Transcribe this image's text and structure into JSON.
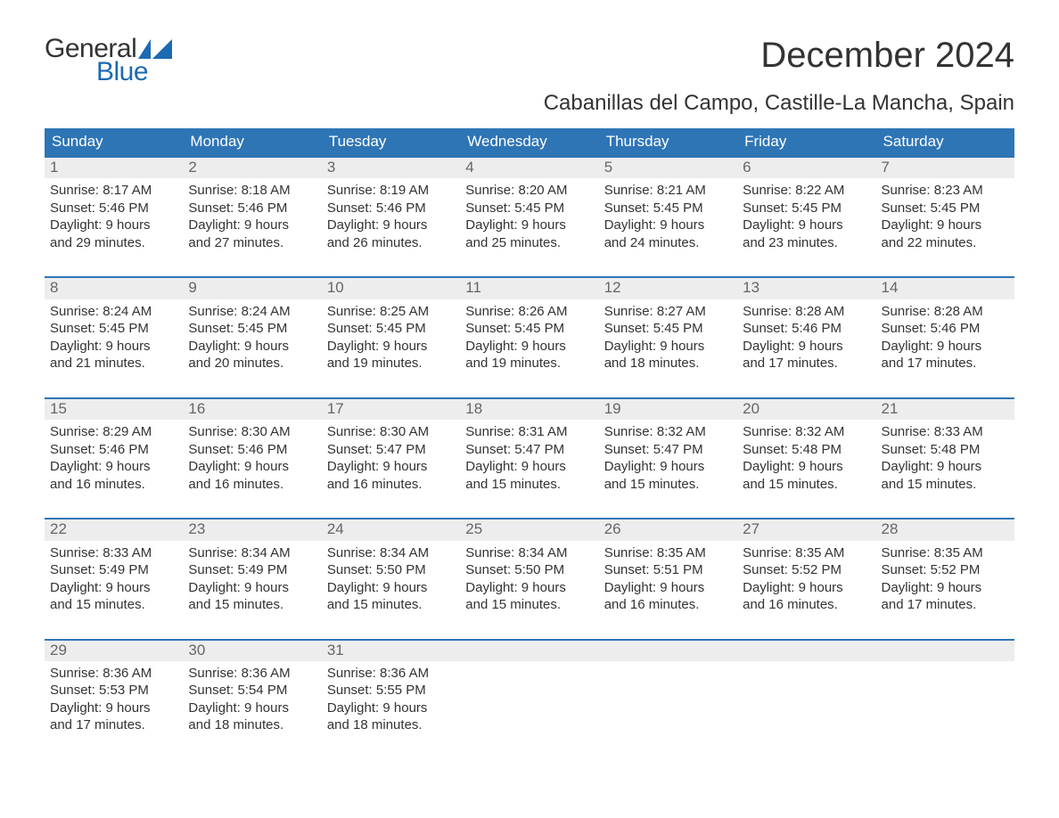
{
  "brand": {
    "line1": "General",
    "line2": "Blue"
  },
  "title": "December 2024",
  "subtitle": "Cabanillas del Campo, Castille-La Mancha, Spain",
  "colors": {
    "header_bg": "#2e75b6",
    "header_text": "#ffffff",
    "week_border": "#2e75b6",
    "daynum_bg": "#ededed",
    "daynum_text": "#666666",
    "body_text": "#333333",
    "brand_blue": "#1b6ab2",
    "page_bg": "#ffffff"
  },
  "typography": {
    "title_fontsize": 40,
    "subtitle_fontsize": 24,
    "dow_fontsize": 17,
    "daynum_fontsize": 17,
    "body_fontsize": 15,
    "logo_fontsize": 30
  },
  "days_of_week": [
    "Sunday",
    "Monday",
    "Tuesday",
    "Wednesday",
    "Thursday",
    "Friday",
    "Saturday"
  ],
  "weeks": [
    [
      {
        "d": "1",
        "sr": "Sunrise: 8:17 AM",
        "ss": "Sunset: 5:46 PM",
        "dl1": "Daylight: 9 hours",
        "dl2": "and 29 minutes."
      },
      {
        "d": "2",
        "sr": "Sunrise: 8:18 AM",
        "ss": "Sunset: 5:46 PM",
        "dl1": "Daylight: 9 hours",
        "dl2": "and 27 minutes."
      },
      {
        "d": "3",
        "sr": "Sunrise: 8:19 AM",
        "ss": "Sunset: 5:46 PM",
        "dl1": "Daylight: 9 hours",
        "dl2": "and 26 minutes."
      },
      {
        "d": "4",
        "sr": "Sunrise: 8:20 AM",
        "ss": "Sunset: 5:45 PM",
        "dl1": "Daylight: 9 hours",
        "dl2": "and 25 minutes."
      },
      {
        "d": "5",
        "sr": "Sunrise: 8:21 AM",
        "ss": "Sunset: 5:45 PM",
        "dl1": "Daylight: 9 hours",
        "dl2": "and 24 minutes."
      },
      {
        "d": "6",
        "sr": "Sunrise: 8:22 AM",
        "ss": "Sunset: 5:45 PM",
        "dl1": "Daylight: 9 hours",
        "dl2": "and 23 minutes."
      },
      {
        "d": "7",
        "sr": "Sunrise: 8:23 AM",
        "ss": "Sunset: 5:45 PM",
        "dl1": "Daylight: 9 hours",
        "dl2": "and 22 minutes."
      }
    ],
    [
      {
        "d": "8",
        "sr": "Sunrise: 8:24 AM",
        "ss": "Sunset: 5:45 PM",
        "dl1": "Daylight: 9 hours",
        "dl2": "and 21 minutes."
      },
      {
        "d": "9",
        "sr": "Sunrise: 8:24 AM",
        "ss": "Sunset: 5:45 PM",
        "dl1": "Daylight: 9 hours",
        "dl2": "and 20 minutes."
      },
      {
        "d": "10",
        "sr": "Sunrise: 8:25 AM",
        "ss": "Sunset: 5:45 PM",
        "dl1": "Daylight: 9 hours",
        "dl2": "and 19 minutes."
      },
      {
        "d": "11",
        "sr": "Sunrise: 8:26 AM",
        "ss": "Sunset: 5:45 PM",
        "dl1": "Daylight: 9 hours",
        "dl2": "and 19 minutes."
      },
      {
        "d": "12",
        "sr": "Sunrise: 8:27 AM",
        "ss": "Sunset: 5:45 PM",
        "dl1": "Daylight: 9 hours",
        "dl2": "and 18 minutes."
      },
      {
        "d": "13",
        "sr": "Sunrise: 8:28 AM",
        "ss": "Sunset: 5:46 PM",
        "dl1": "Daylight: 9 hours",
        "dl2": "and 17 minutes."
      },
      {
        "d": "14",
        "sr": "Sunrise: 8:28 AM",
        "ss": "Sunset: 5:46 PM",
        "dl1": "Daylight: 9 hours",
        "dl2": "and 17 minutes."
      }
    ],
    [
      {
        "d": "15",
        "sr": "Sunrise: 8:29 AM",
        "ss": "Sunset: 5:46 PM",
        "dl1": "Daylight: 9 hours",
        "dl2": "and 16 minutes."
      },
      {
        "d": "16",
        "sr": "Sunrise: 8:30 AM",
        "ss": "Sunset: 5:46 PM",
        "dl1": "Daylight: 9 hours",
        "dl2": "and 16 minutes."
      },
      {
        "d": "17",
        "sr": "Sunrise: 8:30 AM",
        "ss": "Sunset: 5:47 PM",
        "dl1": "Daylight: 9 hours",
        "dl2": "and 16 minutes."
      },
      {
        "d": "18",
        "sr": "Sunrise: 8:31 AM",
        "ss": "Sunset: 5:47 PM",
        "dl1": "Daylight: 9 hours",
        "dl2": "and 15 minutes."
      },
      {
        "d": "19",
        "sr": "Sunrise: 8:32 AM",
        "ss": "Sunset: 5:47 PM",
        "dl1": "Daylight: 9 hours",
        "dl2": "and 15 minutes."
      },
      {
        "d": "20",
        "sr": "Sunrise: 8:32 AM",
        "ss": "Sunset: 5:48 PM",
        "dl1": "Daylight: 9 hours",
        "dl2": "and 15 minutes."
      },
      {
        "d": "21",
        "sr": "Sunrise: 8:33 AM",
        "ss": "Sunset: 5:48 PM",
        "dl1": "Daylight: 9 hours",
        "dl2": "and 15 minutes."
      }
    ],
    [
      {
        "d": "22",
        "sr": "Sunrise: 8:33 AM",
        "ss": "Sunset: 5:49 PM",
        "dl1": "Daylight: 9 hours",
        "dl2": "and 15 minutes."
      },
      {
        "d": "23",
        "sr": "Sunrise: 8:34 AM",
        "ss": "Sunset: 5:49 PM",
        "dl1": "Daylight: 9 hours",
        "dl2": "and 15 minutes."
      },
      {
        "d": "24",
        "sr": "Sunrise: 8:34 AM",
        "ss": "Sunset: 5:50 PM",
        "dl1": "Daylight: 9 hours",
        "dl2": "and 15 minutes."
      },
      {
        "d": "25",
        "sr": "Sunrise: 8:34 AM",
        "ss": "Sunset: 5:50 PM",
        "dl1": "Daylight: 9 hours",
        "dl2": "and 15 minutes."
      },
      {
        "d": "26",
        "sr": "Sunrise: 8:35 AM",
        "ss": "Sunset: 5:51 PM",
        "dl1": "Daylight: 9 hours",
        "dl2": "and 16 minutes."
      },
      {
        "d": "27",
        "sr": "Sunrise: 8:35 AM",
        "ss": "Sunset: 5:52 PM",
        "dl1": "Daylight: 9 hours",
        "dl2": "and 16 minutes."
      },
      {
        "d": "28",
        "sr": "Sunrise: 8:35 AM",
        "ss": "Sunset: 5:52 PM",
        "dl1": "Daylight: 9 hours",
        "dl2": "and 17 minutes."
      }
    ],
    [
      {
        "d": "29",
        "sr": "Sunrise: 8:36 AM",
        "ss": "Sunset: 5:53 PM",
        "dl1": "Daylight: 9 hours",
        "dl2": "and 17 minutes."
      },
      {
        "d": "30",
        "sr": "Sunrise: 8:36 AM",
        "ss": "Sunset: 5:54 PM",
        "dl1": "Daylight: 9 hours",
        "dl2": "and 18 minutes."
      },
      {
        "d": "31",
        "sr": "Sunrise: 8:36 AM",
        "ss": "Sunset: 5:55 PM",
        "dl1": "Daylight: 9 hours",
        "dl2": "and 18 minutes."
      },
      null,
      null,
      null,
      null
    ]
  ]
}
